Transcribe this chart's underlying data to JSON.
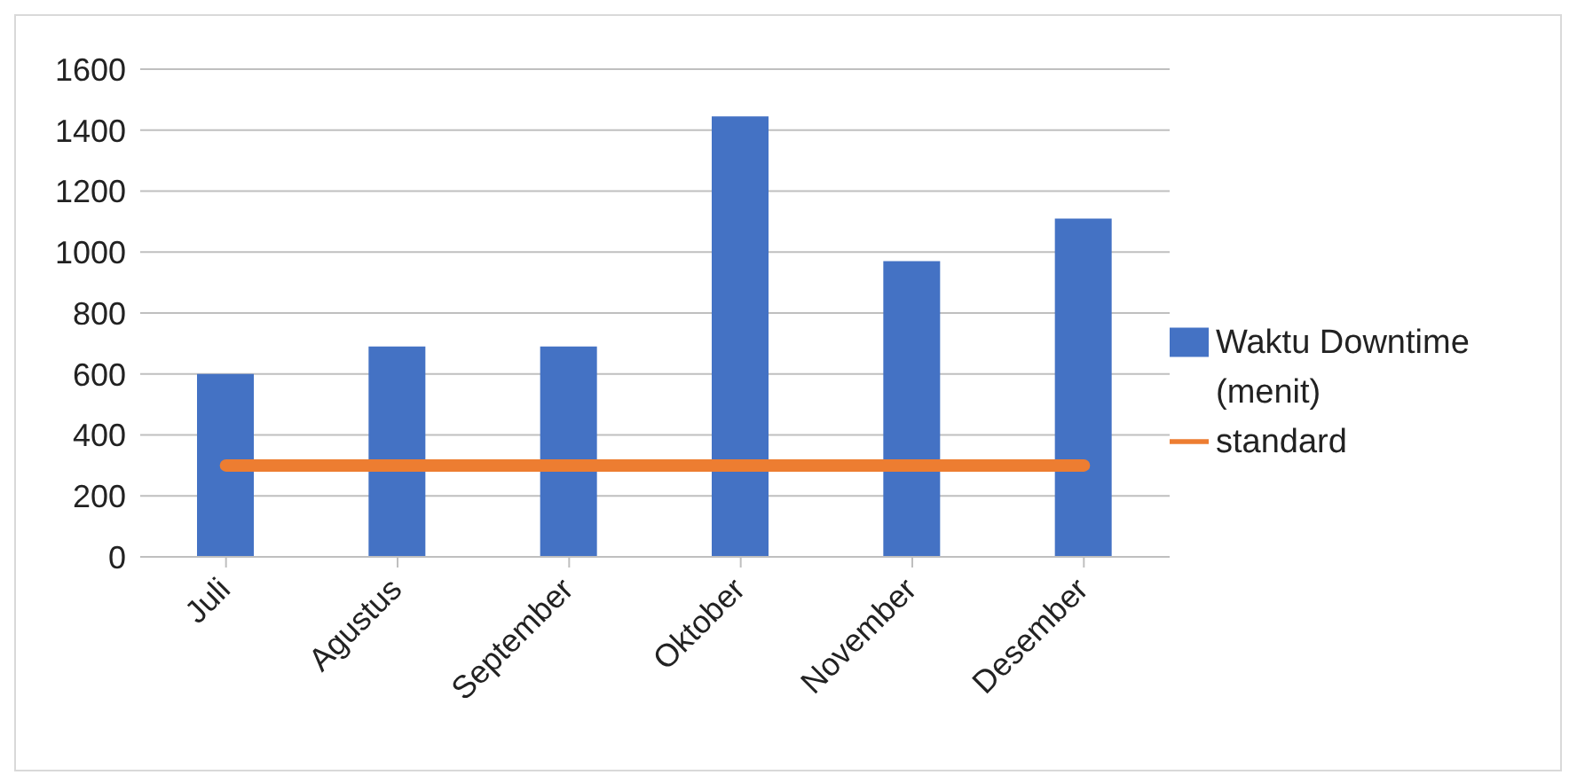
{
  "chart_data": {
    "type": "bar",
    "categories": [
      "Juli",
      "Agustus",
      "September",
      "Oktober",
      "November",
      "Desember"
    ],
    "series": [
      {
        "name": "Waktu Downtime (menit)",
        "color": "#4472c4",
        "values": [
          600,
          690,
          690,
          1445,
          970,
          1110
        ]
      },
      {
        "name": "standard",
        "type": "line",
        "color": "#ed7d31",
        "values": [
          300,
          300,
          300,
          300,
          300,
          300
        ]
      }
    ],
    "ylim": [
      0,
      1600
    ],
    "yticks": [
      0,
      200,
      400,
      600,
      800,
      1000,
      1200,
      1400,
      1600
    ],
    "grid": "y",
    "legend": "right",
    "marker": "none"
  }
}
